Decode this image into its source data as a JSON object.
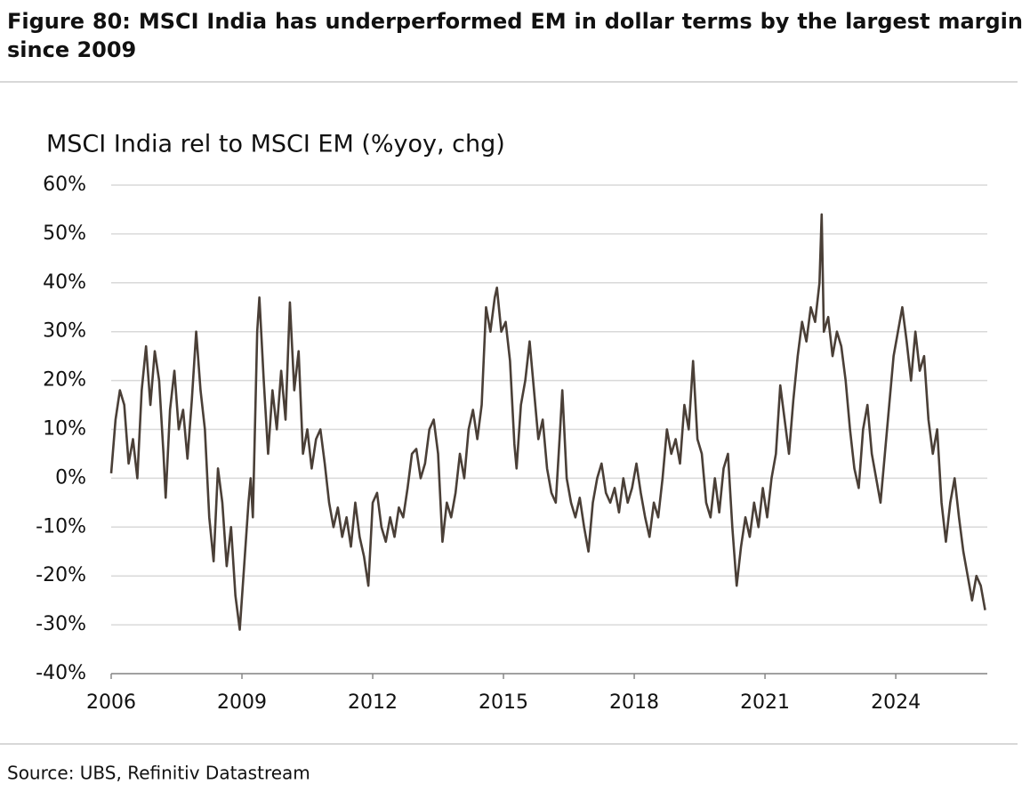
{
  "chart_data": {
    "type": "line",
    "title": "Figure 80: MSCI India has underperformed EM in dollar terms by the largest margin since 2009",
    "subtitle": "MSCI India rel to MSCI EM (%yoy, chg)",
    "source": "Source: UBS, Refinitiv Datastream",
    "xlim": [
      2006,
      2026.1
    ],
    "xticks": [
      2006,
      2009,
      2012,
      2015,
      2018,
      2021,
      2024
    ],
    "ylim": [
      -40,
      60
    ],
    "yticks": [
      {
        "value": -40,
        "label": "-40%"
      },
      {
        "value": -30,
        "label": "-30%"
      },
      {
        "value": -20,
        "label": "-20%"
      },
      {
        "value": -10,
        "label": "-10%"
      },
      {
        "value": 0,
        "label": "0%"
      },
      {
        "value": 10,
        "label": "10%"
      },
      {
        "value": 20,
        "label": "20%"
      },
      {
        "value": 30,
        "label": "30%"
      },
      {
        "value": 40,
        "label": "40%"
      },
      {
        "value": 50,
        "label": "50%"
      },
      {
        "value": 60,
        "label": "60%"
      }
    ],
    "grid": true,
    "color": "#4a3f37",
    "x": [
      2006.0,
      2006.1,
      2006.2,
      2006.3,
      2006.4,
      2006.5,
      2006.6,
      2006.7,
      2006.8,
      2006.9,
      2007.0,
      2007.1,
      2007.2,
      2007.25,
      2007.35,
      2007.45,
      2007.55,
      2007.65,
      2007.75,
      2007.85,
      2007.95,
      2008.05,
      2008.15,
      2008.25,
      2008.35,
      2008.45,
      2008.55,
      2008.65,
      2008.75,
      2008.85,
      2008.95,
      2009.05,
      2009.15,
      2009.2,
      2009.25,
      2009.35,
      2009.4,
      2009.5,
      2009.6,
      2009.7,
      2009.8,
      2009.9,
      2010.0,
      2010.1,
      2010.2,
      2010.3,
      2010.4,
      2010.5,
      2010.6,
      2010.7,
      2010.8,
      2010.9,
      2011.0,
      2011.1,
      2011.2,
      2011.3,
      2011.4,
      2011.5,
      2011.6,
      2011.7,
      2011.8,
      2011.9,
      2012.0,
      2012.1,
      2012.2,
      2012.3,
      2012.4,
      2012.5,
      2012.6,
      2012.7,
      2012.8,
      2012.9,
      2013.0,
      2013.1,
      2013.2,
      2013.3,
      2013.4,
      2013.5,
      2013.6,
      2013.7,
      2013.8,
      2013.9,
      2014.0,
      2014.1,
      2014.2,
      2014.3,
      2014.4,
      2014.5,
      2014.6,
      2014.7,
      2014.8,
      2014.85,
      2014.95,
      2015.05,
      2015.15,
      2015.25,
      2015.3,
      2015.4,
      2015.5,
      2015.6,
      2015.7,
      2015.8,
      2015.9,
      2016.0,
      2016.1,
      2016.2,
      2016.3,
      2016.35,
      2016.45,
      2016.55,
      2016.65,
      2016.75,
      2016.85,
      2016.95,
      2017.05,
      2017.15,
      2017.25,
      2017.35,
      2017.45,
      2017.55,
      2017.65,
      2017.75,
      2017.85,
      2017.95,
      2018.05,
      2018.15,
      2018.25,
      2018.35,
      2018.45,
      2018.55,
      2018.65,
      2018.75,
      2018.85,
      2018.95,
      2019.05,
      2019.15,
      2019.25,
      2019.35,
      2019.45,
      2019.55,
      2019.65,
      2019.75,
      2019.85,
      2019.95,
      2020.05,
      2020.15,
      2020.25,
      2020.35,
      2020.45,
      2020.55,
      2020.65,
      2020.75,
      2020.85,
      2020.95,
      2021.05,
      2021.15,
      2021.25,
      2021.35,
      2021.45,
      2021.55,
      2021.65,
      2021.75,
      2021.85,
      2021.95,
      2022.05,
      2022.15,
      2022.25,
      2022.3,
      2022.35,
      2022.45,
      2022.55,
      2022.65,
      2022.75,
      2022.85,
      2022.95,
      2023.05,
      2023.15,
      2023.25,
      2023.35,
      2023.45,
      2023.55,
      2023.65,
      2023.75,
      2023.85,
      2023.95,
      2024.05,
      2024.15,
      2024.25,
      2024.35,
      2024.45,
      2024.55,
      2024.65,
      2024.75,
      2024.85,
      2024.95,
      2025.05,
      2025.15,
      2025.25,
      2025.35,
      2025.45,
      2025.55,
      2025.65,
      2025.75,
      2025.85,
      2025.95,
      2026.05
    ],
    "values": [
      1,
      12,
      18,
      15,
      3,
      8,
      0,
      18,
      27,
      15,
      26,
      20,
      5,
      -4,
      14,
      22,
      10,
      14,
      4,
      16,
      30,
      18,
      10,
      -8,
      -17,
      2,
      -5,
      -18,
      -10,
      -24,
      -31,
      -18,
      -5,
      0,
      -8,
      30,
      37,
      20,
      5,
      18,
      10,
      22,
      12,
      36,
      18,
      26,
      5,
      10,
      2,
      8,
      10,
      3,
      -5,
      -10,
      -6,
      -12,
      -8,
      -14,
      -5,
      -12,
      -16,
      -22,
      -5,
      -3,
      -10,
      -13,
      -8,
      -12,
      -6,
      -8,
      -2,
      5,
      6,
      0,
      3,
      10,
      12,
      5,
      -13,
      -5,
      -8,
      -3,
      5,
      0,
      10,
      14,
      8,
      15,
      35,
      30,
      37,
      39,
      30,
      32,
      24,
      7,
      2,
      15,
      20,
      28,
      18,
      8,
      12,
      2,
      -3,
      -5,
      10,
      18,
      0,
      -5,
      -8,
      -4,
      -10,
      -15,
      -5,
      0,
      3,
      -3,
      -5,
      -2,
      -7,
      0,
      -5,
      -2,
      3,
      -3,
      -8,
      -12,
      -5,
      -8,
      0,
      10,
      5,
      8,
      3,
      15,
      10,
      24,
      8,
      5,
      -5,
      -8,
      0,
      -7,
      2,
      5,
      -10,
      -22,
      -14,
      -8,
      -12,
      -5,
      -10,
      -2,
      -8,
      0,
      5,
      19,
      12,
      5,
      16,
      25,
      32,
      28,
      35,
      32,
      40,
      54,
      30,
      33,
      25,
      30,
      27,
      20,
      10,
      2,
      -2,
      10,
      15,
      5,
      0,
      -5,
      5,
      15,
      25,
      30,
      35,
      28,
      20,
      30,
      22,
      25,
      12,
      5,
      10,
      -5,
      -13,
      -5,
      0,
      -8,
      -15,
      -20,
      -25,
      -20,
      -22,
      -27
    ]
  }
}
